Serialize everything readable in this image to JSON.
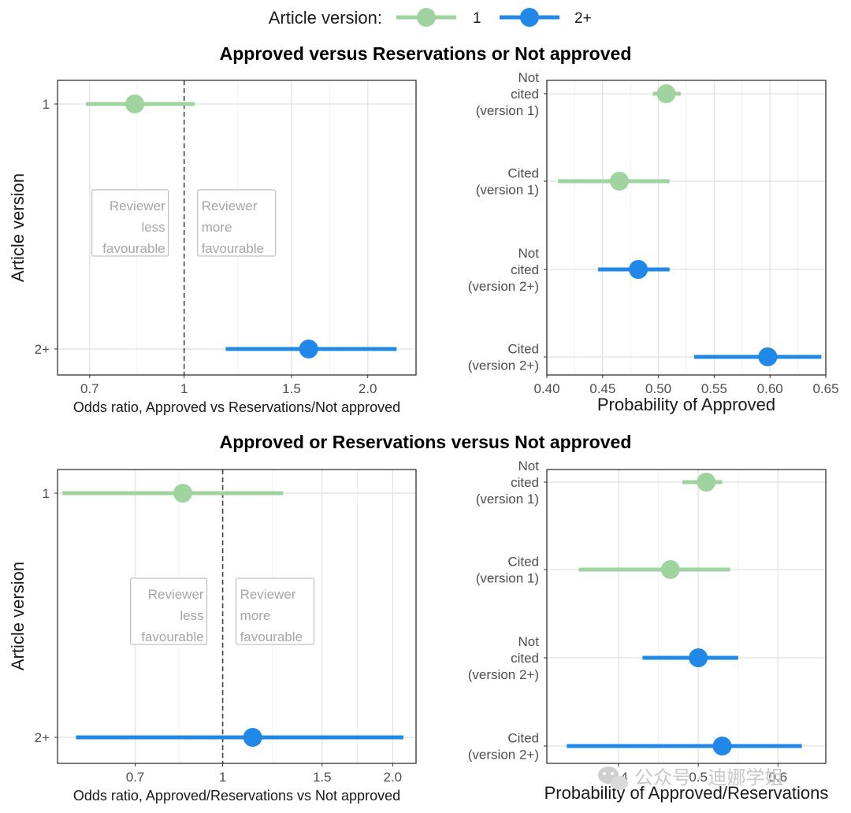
{
  "legend": {
    "title": "Article version:",
    "items": [
      {
        "label": "1",
        "color": "#9fd39f"
      },
      {
        "label": "2+",
        "color": "#2288e8"
      }
    ]
  },
  "watermark": {
    "text": "公众号 · 迪娜学姐",
    "icon": "wechat-icon"
  },
  "annotations": {
    "less": [
      "Reviewer",
      "less",
      "favourable"
    ],
    "more": [
      "Reviewer",
      "more",
      "favourable"
    ]
  },
  "chart_data": [
    {
      "type": "scatter",
      "panel": "top-left",
      "section_title": "Approved versus Reservations or Not approved",
      "xlabel": "Odds ratio, Approved vs Reservations/Not approved",
      "ylabel": "Article version",
      "x_scale": "log",
      "xlim": [
        0.62,
        2.4
      ],
      "xticks": [
        0.7,
        1,
        1.5,
        2.0
      ],
      "xtick_labels": [
        "0.7",
        "1",
        "1.5",
        "2.0"
      ],
      "reference_line": 1,
      "categories": [
        "1",
        "2+"
      ],
      "points": [
        {
          "category": "1",
          "estimate": 0.83,
          "lower": 0.69,
          "upper": 1.04,
          "color": "#9fd39f"
        },
        {
          "category": "2+",
          "estimate": 1.6,
          "lower": 1.17,
          "upper": 2.23,
          "color": "#2288e8"
        }
      ],
      "grid": true
    },
    {
      "type": "scatter",
      "panel": "top-right",
      "xlabel": "Probability of Approved",
      "x_scale": "linear",
      "xlim": [
        0.4,
        0.65
      ],
      "xticks": [
        0.4,
        0.45,
        0.5,
        0.55,
        0.6,
        0.65
      ],
      "xtick_labels": [
        "0.40",
        "0.45",
        "0.50",
        "0.55",
        "0.60",
        "0.65"
      ],
      "categories": [
        [
          "Not",
          "cited",
          "(version 1)"
        ],
        [
          "Cited",
          "(version 1)"
        ],
        [
          "Not",
          "cited",
          "(version 2+)"
        ],
        [
          "Cited",
          "(version 2+)"
        ]
      ],
      "points": [
        {
          "estimate": 0.507,
          "lower": 0.495,
          "upper": 0.52,
          "color": "#9fd39f"
        },
        {
          "estimate": 0.465,
          "lower": 0.41,
          "upper": 0.51,
          "color": "#9fd39f"
        },
        {
          "estimate": 0.482,
          "lower": 0.446,
          "upper": 0.51,
          "color": "#2288e8"
        },
        {
          "estimate": 0.598,
          "lower": 0.532,
          "upper": 0.646,
          "color": "#2288e8"
        }
      ],
      "grid": true
    },
    {
      "type": "scatter",
      "panel": "bottom-left",
      "section_title": "Approved or Reservations versus Not approved",
      "xlabel": "Odds ratio, Approved/Reservations vs Not approved",
      "ylabel": "Article version",
      "x_scale": "log",
      "xlim": [
        0.51,
        2.2
      ],
      "xticks": [
        0.7,
        1,
        1.5,
        2.0
      ],
      "xtick_labels": [
        "0.7",
        "1",
        "1.5",
        "2.0"
      ],
      "reference_line": 1,
      "categories": [
        "1",
        "2+"
      ],
      "points": [
        {
          "category": "1",
          "estimate": 0.85,
          "lower": 0.52,
          "upper": 1.28,
          "color": "#9fd39f"
        },
        {
          "category": "2+",
          "estimate": 1.13,
          "lower": 0.55,
          "upper": 2.09,
          "color": "#2288e8"
        }
      ],
      "grid": true
    },
    {
      "type": "scatter",
      "panel": "bottom-right",
      "xlabel": "Probability of Approved/Reservations",
      "x_scale": "linear",
      "xlim": [
        0.31,
        0.66
      ],
      "xticks": [
        0.4,
        0.5,
        0.6
      ],
      "xtick_labels": [
        "0.4",
        "0.5",
        "0.6"
      ],
      "categories": [
        [
          "Not",
          "cited",
          "(version 1)"
        ],
        [
          "Cited",
          "(version 1)"
        ],
        [
          "Not",
          "cited",
          "(version 2+)"
        ],
        [
          "Cited",
          "(version 2+)"
        ]
      ],
      "points": [
        {
          "estimate": 0.51,
          "lower": 0.48,
          "upper": 0.53,
          "color": "#9fd39f"
        },
        {
          "estimate": 0.465,
          "lower": 0.35,
          "upper": 0.54,
          "color": "#9fd39f"
        },
        {
          "estimate": 0.5,
          "lower": 0.43,
          "upper": 0.55,
          "color": "#2288e8"
        },
        {
          "estimate": 0.53,
          "lower": 0.335,
          "upper": 0.63,
          "color": "#2288e8"
        }
      ],
      "grid": true
    }
  ]
}
